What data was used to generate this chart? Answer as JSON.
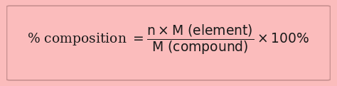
{
  "background_color": "#FBBCBC",
  "text_color": "#1a1a1a",
  "fig_width": 4.74,
  "fig_height": 1.21,
  "dpi": 100,
  "formula": "% composition $=\\dfrac{\\mathrm{n \\times M\\ (element)}}{\\mathrm{M\\ (compound)}}\\times 100\\%$",
  "border_color": "#c89090",
  "border_linewidth": 1.2,
  "fontsize": 13.5
}
